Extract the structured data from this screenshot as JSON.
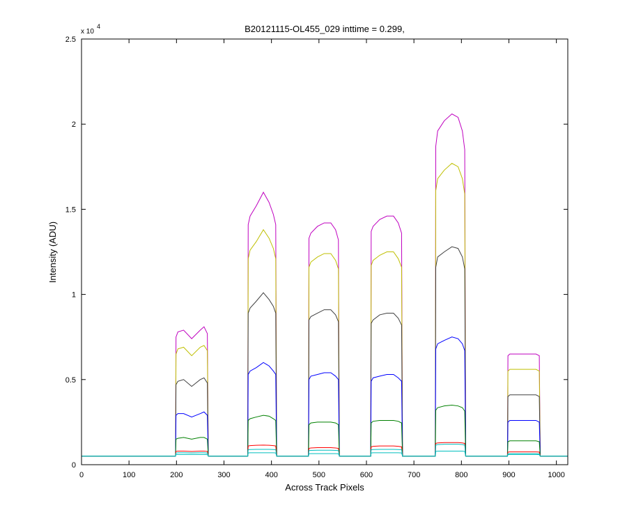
{
  "chart_data": {
    "type": "line",
    "title": "B20121115-OL455_029 inttime = 0.299,",
    "xlabel": "Across Track Pixels",
    "ylabel": "Intensity (ADU)",
    "y_multiplier": {
      "base": "x 10",
      "exponent": "4"
    },
    "xlim": [
      0,
      1024
    ],
    "ylim": [
      0,
      25000
    ],
    "xticks": [
      0,
      100,
      200,
      300,
      400,
      500,
      600,
      700,
      800,
      900,
      1000
    ],
    "yticks": [
      0,
      {
        "value": 5000,
        "label": "0.5"
      },
      {
        "value": 10000,
        "label": "1"
      },
      {
        "value": 15000,
        "label": "1.5"
      },
      {
        "value": 20000,
        "label": "2"
      },
      {
        "value": 25000,
        "label": "2.5"
      }
    ],
    "x": [
      0,
      195,
      198,
      199,
      203,
      215,
      232,
      250,
      258,
      265,
      267,
      271,
      350,
      351,
      355,
      368,
      383,
      395,
      404,
      409,
      411,
      415,
      478,
      479,
      483,
      497,
      511,
      525,
      535,
      541,
      543,
      547,
      609,
      610,
      614,
      628,
      643,
      657,
      667,
      674,
      676,
      680,
      745,
      746,
      750,
      764,
      780,
      793,
      802,
      807,
      809,
      813,
      897,
      898,
      902,
      915,
      930,
      945,
      957,
      964,
      966,
      970,
      1024
    ],
    "series": [
      {
        "color": "#bf00bf",
        "values": [
          500,
          500,
          500,
          7500,
          7800,
          7900,
          7400,
          7900,
          8100,
          7700,
          500,
          500,
          500,
          14100,
          14600,
          15200,
          16000,
          15400,
          14700,
          14100,
          500,
          500,
          500,
          13300,
          13600,
          14000,
          14200,
          14200,
          13800,
          13200,
          500,
          500,
          500,
          13700,
          14000,
          14400,
          14600,
          14600,
          14200,
          13600,
          500,
          500,
          500,
          18700,
          19600,
          20200,
          20600,
          20400,
          19600,
          18500,
          500,
          500,
          500,
          6400,
          6500,
          6500,
          6500,
          6500,
          6500,
          6400,
          500,
          500,
          500
        ]
      },
      {
        "color": "#bfbf00",
        "values": [
          500,
          500,
          500,
          6500,
          6800,
          6900,
          6400,
          6900,
          7000,
          6700,
          500,
          500,
          500,
          12100,
          12600,
          13100,
          13800,
          13300,
          12700,
          12100,
          500,
          500,
          500,
          11600,
          11900,
          12200,
          12400,
          12400,
          12000,
          11500,
          500,
          500,
          500,
          11700,
          12000,
          12300,
          12500,
          12500,
          12100,
          11600,
          500,
          500,
          500,
          16100,
          16800,
          17300,
          17700,
          17500,
          16800,
          15900,
          500,
          500,
          500,
          5500,
          5600,
          5600,
          5600,
          5600,
          5600,
          5500,
          500,
          500,
          500
        ]
      },
      {
        "color": "#404040",
        "values": [
          500,
          500,
          500,
          4700,
          4900,
          5000,
          4600,
          5000,
          5100,
          4800,
          500,
          500,
          500,
          8900,
          9200,
          9600,
          10100,
          9700,
          9300,
          8900,
          500,
          500,
          500,
          8500,
          8700,
          8900,
          9100,
          9100,
          8800,
          8400,
          500,
          500,
          500,
          8300,
          8500,
          8800,
          8900,
          8900,
          8600,
          8200,
          500,
          500,
          500,
          11600,
          12200,
          12500,
          12800,
          12700,
          12200,
          11500,
          500,
          500,
          500,
          4000,
          4100,
          4100,
          4100,
          4100,
          4100,
          4000,
          500,
          500,
          500
        ]
      },
      {
        "color": "#0000ff",
        "values": [
          500,
          500,
          500,
          2900,
          3000,
          3000,
          2800,
          3000,
          3100,
          2900,
          500,
          500,
          500,
          5300,
          5500,
          5700,
          6000,
          5800,
          5500,
          5300,
          500,
          500,
          500,
          5000,
          5200,
          5300,
          5400,
          5400,
          5200,
          5000,
          500,
          500,
          500,
          4900,
          5100,
          5200,
          5300,
          5300,
          5100,
          4900,
          500,
          500,
          500,
          6800,
          7100,
          7300,
          7500,
          7400,
          7100,
          6700,
          500,
          500,
          500,
          2500,
          2600,
          2600,
          2600,
          2600,
          2600,
          2500,
          500,
          500,
          500
        ]
      },
      {
        "color": "#008000",
        "values": [
          500,
          500,
          500,
          1500,
          1550,
          1600,
          1500,
          1600,
          1600,
          1500,
          500,
          500,
          500,
          2600,
          2700,
          2800,
          2900,
          2850,
          2700,
          2600,
          500,
          500,
          500,
          2350,
          2450,
          2500,
          2500,
          2500,
          2450,
          2350,
          500,
          500,
          500,
          2450,
          2550,
          2600,
          2600,
          2600,
          2550,
          2450,
          500,
          500,
          500,
          3200,
          3350,
          3450,
          3500,
          3450,
          3350,
          3150,
          500,
          500,
          500,
          1350,
          1400,
          1400,
          1400,
          1400,
          1400,
          1350,
          500,
          500,
          500
        ]
      },
      {
        "color": "#ff0000",
        "values": [
          500,
          500,
          500,
          780,
          800,
          800,
          780,
          800,
          800,
          780,
          500,
          500,
          500,
          1100,
          1120,
          1140,
          1150,
          1140,
          1120,
          1100,
          500,
          500,
          500,
          960,
          980,
          1000,
          1000,
          1000,
          980,
          960,
          500,
          500,
          500,
          1050,
          1080,
          1100,
          1100,
          1100,
          1080,
          1050,
          500,
          500,
          500,
          1250,
          1280,
          1300,
          1300,
          1300,
          1280,
          1250,
          500,
          500,
          500,
          740,
          750,
          750,
          750,
          750,
          750,
          740,
          500,
          500,
          500
        ]
      },
      {
        "color": "#00bfbf",
        "values": [
          500,
          500,
          500,
          680,
          700,
          700,
          690,
          700,
          700,
          680,
          500,
          500,
          500,
          880,
          890,
          900,
          900,
          900,
          890,
          880,
          500,
          500,
          500,
          830,
          840,
          850,
          850,
          850,
          840,
          830,
          500,
          500,
          500,
          880,
          890,
          900,
          900,
          900,
          890,
          880,
          500,
          500,
          500,
          1150,
          1180,
          1200,
          1200,
          1200,
          1180,
          1150,
          500,
          500,
          500,
          640,
          650,
          650,
          650,
          650,
          650,
          640,
          500,
          500,
          500
        ]
      },
      {
        "color": "#00bfbf",
        "values": [
          500,
          500,
          500,
          590,
          600,
          600,
          600,
          600,
          600,
          590,
          500,
          500,
          500,
          690,
          700,
          700,
          700,
          700,
          700,
          690,
          500,
          500,
          500,
          640,
          650,
          650,
          650,
          650,
          650,
          640,
          500,
          500,
          500,
          690,
          700,
          700,
          700,
          700,
          700,
          690,
          500,
          500,
          500,
          780,
          800,
          800,
          800,
          800,
          800,
          780,
          500,
          500,
          500,
          590,
          600,
          600,
          600,
          600,
          600,
          590,
          500,
          500,
          500
        ]
      }
    ]
  }
}
